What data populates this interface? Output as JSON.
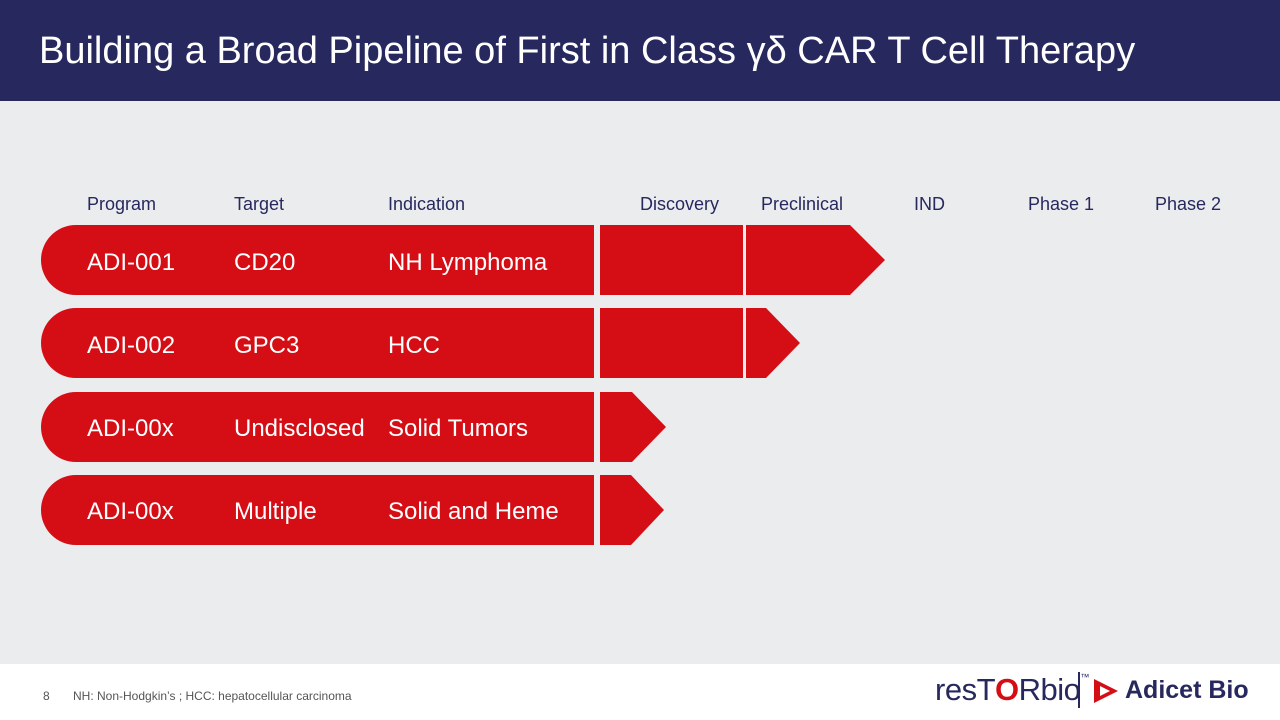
{
  "title": "Building a Broad Pipeline of First in Class γδ CAR T Cell Therapy",
  "columns": {
    "program": "Program",
    "target": "Target",
    "indication": "Indication",
    "discovery": "Discovery",
    "preclinical": "Preclinical",
    "ind": "IND",
    "phase1": "Phase 1",
    "phase2": "Phase 2"
  },
  "rows": [
    {
      "program": "ADI-001",
      "target": "CD20",
      "indication": "NH Lymphoma",
      "stage": "Preclinical"
    },
    {
      "program": "ADI-002",
      "target": "GPC3",
      "indication": "HCC",
      "stage": "Preclinical"
    },
    {
      "program": "ADI-00x",
      "target": "Undisclosed",
      "indication": "Solid Tumors",
      "stage": "Discovery"
    },
    {
      "program": "ADI-00x",
      "target": "Multiple",
      "indication": "Solid and Heme",
      "stage": "Discovery"
    }
  ],
  "footer": {
    "page_number": "8",
    "note": "NH: Non-Hodgkin’s ; HCC: hepatocellular carcinoma"
  },
  "logos": {
    "restor_pre": "resT",
    "restor_o": "O",
    "restor_post": "Rbio",
    "restor_tm": "™",
    "adicet": "Adicet Bio"
  },
  "colors": {
    "header_bg": "#27285e",
    "accent_red": "#d50e16",
    "content_bg": "#ebecee"
  }
}
